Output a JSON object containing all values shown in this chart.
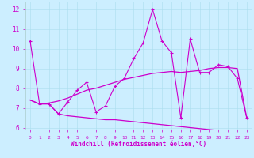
{
  "xlabel": "Windchill (Refroidissement éolien,°C)",
  "x_ticks": [
    0,
    1,
    2,
    3,
    4,
    5,
    6,
    7,
    8,
    9,
    10,
    11,
    12,
    13,
    14,
    15,
    16,
    17,
    18,
    19,
    20,
    21,
    22,
    23
  ],
  "ylim": [
    5.9,
    12.4
  ],
  "yticks": [
    6,
    7,
    8,
    9,
    10,
    11,
    12
  ],
  "bg_color": "#cceeff",
  "line_color": "#cc00cc",
  "line1_x": [
    0,
    1,
    2,
    3,
    4,
    5,
    6,
    7,
    8,
    9,
    10,
    11,
    12,
    13,
    14,
    15,
    16,
    17,
    18,
    19,
    20,
    21,
    22,
    23
  ],
  "line1_y": [
    10.4,
    7.2,
    7.2,
    6.7,
    7.3,
    7.9,
    8.3,
    6.8,
    7.1,
    8.1,
    8.5,
    9.5,
    10.3,
    12.0,
    10.4,
    9.8,
    6.5,
    10.5,
    8.8,
    8.8,
    9.2,
    9.1,
    8.5,
    6.5
  ],
  "line2_x": [
    0,
    1,
    2,
    3,
    4,
    5,
    6,
    7,
    8,
    9,
    10,
    11,
    12,
    13,
    14,
    15,
    16,
    17,
    18,
    19,
    20,
    21,
    22,
    23
  ],
  "line2_y": [
    7.4,
    7.2,
    7.25,
    7.35,
    7.5,
    7.7,
    7.9,
    8.0,
    8.15,
    8.3,
    8.45,
    8.55,
    8.65,
    8.75,
    8.8,
    8.85,
    8.8,
    8.85,
    8.9,
    9.0,
    9.05,
    9.05,
    9.0,
    6.5
  ],
  "line3_x": [
    0,
    1,
    2,
    3,
    4,
    5,
    6,
    7,
    8,
    9,
    10,
    11,
    12,
    13,
    14,
    15,
    16,
    17,
    18,
    19,
    20,
    21,
    22,
    23
  ],
  "line3_y": [
    7.4,
    7.2,
    7.2,
    6.7,
    6.6,
    6.55,
    6.5,
    6.45,
    6.4,
    6.4,
    6.35,
    6.3,
    6.25,
    6.2,
    6.15,
    6.1,
    6.05,
    6.0,
    5.95,
    5.9,
    5.85,
    5.8,
    5.75,
    5.7
  ]
}
